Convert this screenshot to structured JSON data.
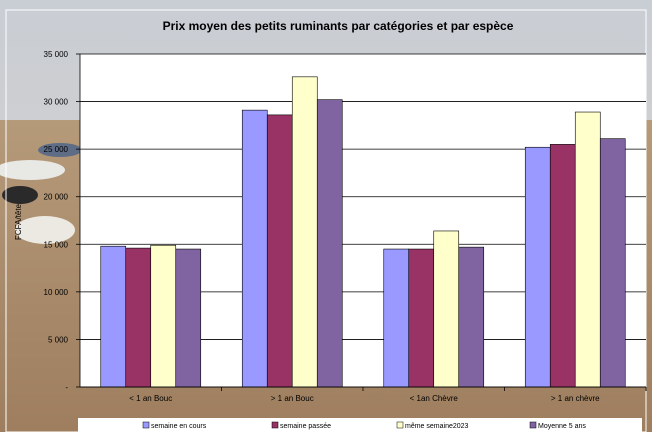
{
  "chart_data": {
    "type": "bar",
    "title": "Prix moyen des petits ruminants par catégories et par espèce",
    "ylabel": "FCFA/tête",
    "xlabel": "",
    "ylim": [
      0,
      35000
    ],
    "yticks": [
      0,
      5000,
      10000,
      15000,
      20000,
      25000,
      30000,
      35000
    ],
    "ytick_labels": [
      "-",
      "5 000",
      "10 000",
      "15 000",
      "20 000",
      "25 000",
      "30 000",
      "35 000"
    ],
    "categories": [
      "< 1 an Bouc",
      "> 1 an Bouc",
      "< 1an Chèvre",
      "> 1 an chèvre"
    ],
    "series": [
      {
        "name": "semaine en cours",
        "color": "#9999FF",
        "values": [
          14800,
          29100,
          14500,
          25200
        ]
      },
      {
        "name": "semaine passée",
        "color": "#993366",
        "values": [
          14600,
          28600,
          14500,
          25500
        ]
      },
      {
        "name": "même semaine2023",
        "color": "#FFFFCC",
        "values": [
          14900,
          32600,
          16400,
          28900
        ]
      },
      {
        "name": "Moyenne 5 ans",
        "color": "#8064A2",
        "values": [
          14500,
          30200,
          14700,
          26100
        ]
      }
    ],
    "grid": true,
    "legend_position": "bottom"
  }
}
